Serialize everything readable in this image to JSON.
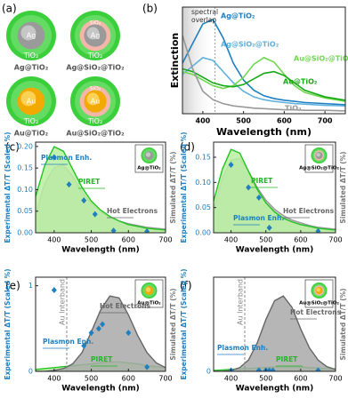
{
  "diagram": {
    "label": "(a)",
    "items": [
      {
        "core": "Ag",
        "layers": [
          "TiO₂"
        ],
        "name": "Ag@TiO₂"
      },
      {
        "core": "Ag",
        "layers": [
          "SiO₂",
          "TiO₂"
        ],
        "name": "Ag@SiO₂@TiO₂"
      },
      {
        "core": "Au",
        "layers": [
          "TiO₂"
        ],
        "name": "Au@TiO₂"
      },
      {
        "core": "Au",
        "layers": [
          "SiO₂",
          "TiO₂"
        ],
        "name": "Au@SiO₂@TiO₂"
      }
    ]
  },
  "chart_data": [
    {
      "type": "line",
      "label": "(b)",
      "x_label": "Wavelength (nm)",
      "y_label": "Extinction",
      "annotations": [
        {
          "text": "spectral overlap",
          "color": "#333333"
        }
      ],
      "xlim": [
        350,
        750
      ],
      "xticks": [
        400,
        500,
        600,
        700
      ],
      "ylim": [
        0,
        1.9
      ],
      "x": [
        350,
        375,
        400,
        425,
        450,
        475,
        500,
        525,
        550,
        575,
        600,
        625,
        650,
        700,
        750
      ],
      "series": [
        {
          "name": "Ag@TiO₂",
          "color": "#1f7fc0",
          "values": [
            0.9,
            1.25,
            1.6,
            1.68,
            1.35,
            0.9,
            0.6,
            0.42,
            0.32,
            0.27,
            0.24,
            0.22,
            0.2,
            0.18,
            0.16
          ]
        },
        {
          "name": "Ag@SiO₂@TiO₂",
          "color": "#5fb0dc",
          "values": [
            0.7,
            0.85,
            1.0,
            0.95,
            0.75,
            0.55,
            0.4,
            0.3,
            0.25,
            0.22,
            0.2,
            0.18,
            0.17,
            0.15,
            0.14
          ]
        },
        {
          "name": "Au@SiO₂@TiO₂",
          "color": "#6ed84f",
          "values": [
            0.75,
            0.7,
            0.6,
            0.5,
            0.45,
            0.5,
            0.65,
            0.88,
            1.0,
            0.92,
            0.7,
            0.5,
            0.38,
            0.28,
            0.22
          ]
        },
        {
          "name": "Au@TiO₂",
          "color": "#17a817",
          "values": [
            0.8,
            0.75,
            0.65,
            0.55,
            0.5,
            0.48,
            0.52,
            0.62,
            0.72,
            0.75,
            0.68,
            0.55,
            0.42,
            0.3,
            0.24
          ]
        },
        {
          "name": "TiO₂",
          "color": "#999999",
          "values": [
            1.4,
            0.8,
            0.4,
            0.25,
            0.18,
            0.14,
            0.12,
            0.1,
            0.09,
            0.08,
            0.07,
            0.07,
            0.06,
            0.06,
            0.05
          ]
        }
      ]
    },
    {
      "type": "combo",
      "label": "(c)",
      "inset": "Ag@TiO₂",
      "x_label": "Wavelength (nm)",
      "y_label": "Experimental ΔT/T (Scaled %)",
      "y2_label": "Simulated ΔT/T (%)",
      "xlim": [
        350,
        700
      ],
      "xticks": [
        400,
        500,
        600,
        700
      ],
      "ylim": [
        0,
        0.21
      ],
      "yticks": [
        {
          "value": 0,
          "label": "0.00"
        },
        {
          "value": 0.05,
          "label": "0.05"
        },
        {
          "value": 0.1,
          "label": "0.10"
        },
        {
          "value": 0.15,
          "label": "0.15"
        },
        {
          "value": 0.2,
          "label": "0.20"
        }
      ],
      "y2lim": [
        0,
        1
      ],
      "annotations": [
        {
          "text": "Plasmon Enh.",
          "color": "#1f7fc0"
        },
        {
          "text": "PIRET",
          "color": "#22b822"
        },
        {
          "text": "Hot Electrons",
          "color": "#666666"
        }
      ],
      "series": [
        {
          "style": "area",
          "axis": "y2",
          "color": "#999999",
          "fill": "#c8c8c8",
          "x": [
            350,
            375,
            400,
            425,
            450,
            475,
            500,
            525,
            550,
            575,
            600,
            625,
            650,
            675,
            700
          ],
          "values": [
            0.2,
            0.55,
            0.72,
            0.75,
            0.62,
            0.45,
            0.32,
            0.23,
            0.17,
            0.13,
            0.1,
            0.08,
            0.06,
            0.05,
            0.04
          ]
        },
        {
          "style": "area",
          "axis": "y2",
          "color": "#22c322",
          "fill": "#b9f0a0",
          "x": [
            350,
            375,
            400,
            425,
            450,
            475,
            500,
            525,
            550,
            575,
            600,
            625,
            650,
            675,
            700
          ],
          "values": [
            0.4,
            0.75,
            0.95,
            0.9,
            0.7,
            0.5,
            0.35,
            0.25,
            0.18,
            0.13,
            0.09,
            0.07,
            0.05,
            0.04,
            0.03
          ]
        },
        {
          "style": "marker",
          "color": "#1f7fc0",
          "x": [
            400,
            440,
            480,
            510,
            560,
            650
          ],
          "values": [
            0.175,
            0.112,
            0.075,
            0.043,
            0.005,
            0.003
          ]
        }
      ]
    },
    {
      "type": "combo",
      "label": "(d)",
      "inset": "Ag@SiO₂@TiO₂",
      "x_label": "Wavelength (nm)",
      "y_label": "Experimental ΔT/T (Scaled %)",
      "y2_label": "Simulated ΔT/T (%)",
      "xlim": [
        350,
        700
      ],
      "xticks": [
        400,
        500,
        600,
        700
      ],
      "ylim": [
        0,
        0.18
      ],
      "yticks": [
        {
          "value": 0,
          "label": "0.00"
        },
        {
          "value": 0.05,
          "label": "0.05"
        },
        {
          "value": 0.1,
          "label": "0.10"
        },
        {
          "value": 0.15,
          "label": "0.15"
        }
      ],
      "y2lim": [
        0,
        1
      ],
      "annotations": [
        {
          "text": "PIRET",
          "color": "#22b822"
        },
        {
          "text": "Plasmon Enh.",
          "color": "#1f7fc0"
        },
        {
          "text": "Hot Electrons",
          "color": "#666666"
        }
      ],
      "series": [
        {
          "style": "area",
          "axis": "y2",
          "color": "#999999",
          "fill": "#c8c8c8",
          "x": [
            350,
            375,
            400,
            425,
            450,
            475,
            500,
            525,
            550,
            575,
            600,
            625,
            650,
            675,
            700
          ],
          "values": [
            0.25,
            0.6,
            0.8,
            0.82,
            0.68,
            0.5,
            0.36,
            0.26,
            0.19,
            0.14,
            0.11,
            0.08,
            0.06,
            0.05,
            0.04
          ]
        },
        {
          "style": "area",
          "axis": "y2",
          "color": "#22c322",
          "fill": "#b9f0a0",
          "x": [
            350,
            375,
            400,
            425,
            450,
            475,
            500,
            525,
            550,
            575,
            600,
            625,
            650,
            675,
            700
          ],
          "values": [
            0.35,
            0.7,
            0.92,
            0.88,
            0.68,
            0.48,
            0.33,
            0.23,
            0.16,
            0.12,
            0.09,
            0.07,
            0.05,
            0.04,
            0.03
          ]
        },
        {
          "style": "marker",
          "color": "#1f7fc0",
          "x": [
            400,
            450,
            480,
            510,
            650
          ],
          "values": [
            0.135,
            0.09,
            0.07,
            0.01,
            0.003
          ]
        }
      ]
    },
    {
      "type": "combo",
      "label": "(e)",
      "inset": "Au@TiO₂",
      "x_label": "Wavelength (nm)",
      "y_label": "Experimental ΔT/T (Scaled %)",
      "y2_label": "Simulated ΔT/T (%)",
      "xlim": [
        350,
        700
      ],
      "xticks": [
        400,
        500,
        600,
        700
      ],
      "ylim": [
        0,
        1.1
      ],
      "yticks": [
        0,
        1
      ],
      "y2lim": [
        0,
        1
      ],
      "annotations": [
        {
          "text": "Au Interband",
          "color": "#888888"
        },
        {
          "text": "Hot Electrons",
          "color": "#666666"
        },
        {
          "text": "Plasmon Enh.",
          "color": "#1f7fc0"
        },
        {
          "text": "PIRET",
          "color": "#22b822"
        }
      ],
      "series": [
        {
          "style": "area",
          "axis": "y2",
          "color": "#22c322",
          "fill": "#b9f0a0",
          "x": [
            350,
            375,
            400,
            425,
            450,
            475,
            500,
            525,
            550,
            575,
            600,
            625,
            650,
            675,
            700
          ],
          "values": [
            0.02,
            0.03,
            0.04,
            0.05,
            0.06,
            0.07,
            0.08,
            0.09,
            0.1,
            0.1,
            0.09,
            0.08,
            0.06,
            0.05,
            0.04
          ]
        },
        {
          "style": "area",
          "axis": "y2",
          "color": "#666666",
          "fill": "#a9a9a9",
          "x": [
            350,
            375,
            400,
            425,
            450,
            475,
            500,
            525,
            550,
            575,
            600,
            625,
            650,
            675,
            700
          ],
          "values": [
            0,
            0,
            0.01,
            0.03,
            0.08,
            0.2,
            0.42,
            0.65,
            0.8,
            0.78,
            0.6,
            0.38,
            0.2,
            0.09,
            0.04
          ]
        },
        {
          "style": "marker",
          "color": "#1f7fc0",
          "x": [
            400,
            480,
            500,
            520,
            530,
            600,
            650
          ],
          "values": [
            0.95,
            0.3,
            0.45,
            0.5,
            0.55,
            0.45,
            0.05
          ]
        }
      ]
    },
    {
      "type": "combo",
      "label": "(f)",
      "inset": "Au@SiO₂@TiO₂",
      "x_label": "Wavelength (nm)",
      "y_label": "Experimental ΔT/T (Scaled %)",
      "y2_label": "Simulated ΔT/T (%)",
      "xlim": [
        350,
        700
      ],
      "xticks": [
        400,
        500,
        600,
        700
      ],
      "ylim": [
        0,
        1.1
      ],
      "yticks": [
        0
      ],
      "y2lim": [
        0,
        1
      ],
      "annotations": [
        {
          "text": "Au Interband",
          "color": "#888888"
        },
        {
          "text": "Hot Electrons",
          "color": "#666666"
        },
        {
          "text": "Plasmon Enh.",
          "color": "#1f7fc0"
        },
        {
          "text": "PIRET",
          "color": "#22b822"
        }
      ],
      "series": [
        {
          "style": "area",
          "axis": "y2",
          "color": "#22c322",
          "fill": "#b9f0a0",
          "x": [
            350,
            375,
            400,
            425,
            450,
            475,
            500,
            525,
            550,
            575,
            600,
            625,
            650,
            675,
            700
          ],
          "values": [
            0.01,
            0.015,
            0.02,
            0.025,
            0.03,
            0.035,
            0.04,
            0.045,
            0.05,
            0.05,
            0.045,
            0.04,
            0.035,
            0.03,
            0.025
          ]
        },
        {
          "style": "area",
          "axis": "y2",
          "color": "#666666",
          "fill": "#a9a9a9",
          "x": [
            350,
            375,
            400,
            425,
            450,
            475,
            500,
            525,
            550,
            575,
            600,
            625,
            650,
            675,
            700
          ],
          "values": [
            0,
            0,
            0.01,
            0.04,
            0.12,
            0.3,
            0.55,
            0.75,
            0.8,
            0.68,
            0.45,
            0.25,
            0.12,
            0.05,
            0.02
          ]
        },
        {
          "style": "marker",
          "color": "#1f7fc0",
          "x": [
            400,
            480,
            500,
            510,
            520,
            650
          ],
          "values": [
            0.01,
            0.01,
            0.01,
            0.01,
            0.01,
            0.01
          ]
        }
      ]
    }
  ]
}
